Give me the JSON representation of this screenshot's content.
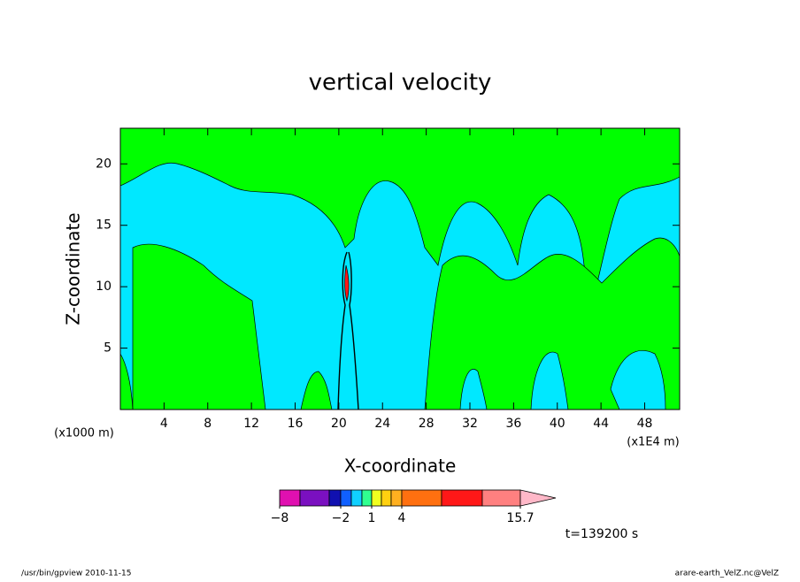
{
  "chart_data": {
    "type": "contour",
    "title": "vertical velocity",
    "x_label": "X-coordinate",
    "y_label": "Z-coordinate",
    "x_unit_left": "(x1000 m)",
    "x_unit_right": "(x1E4 m)",
    "xlim": [
      0,
      51.2
    ],
    "ylim": [
      0,
      22.9
    ],
    "xticks": [
      4,
      8,
      12,
      16,
      20,
      24,
      28,
      32,
      36,
      40,
      44,
      48
    ],
    "yticks": [
      5,
      10,
      15,
      20
    ],
    "colorbar": {
      "colors": [
        "#e010b0",
        "#7a10c0",
        "#1010b0",
        "#1060ff",
        "#10d0ff",
        "#30ff90",
        "#f0ff20",
        "#ffd010",
        "#ffb020",
        "#ff7010",
        "#ff1818",
        "#ff8080",
        "#ffb8c8"
      ],
      "ticks": [
        {
          "value": -8,
          "label": "−8"
        },
        {
          "value": -2,
          "label": "−2"
        },
        1,
        4,
        15.7
      ]
    },
    "time_label": "t=139200 s",
    "footer_left": "/usr/bin/gpview   2010-11-15",
    "footer_right": "arare-earth_VelZ.nc@VelZ"
  }
}
